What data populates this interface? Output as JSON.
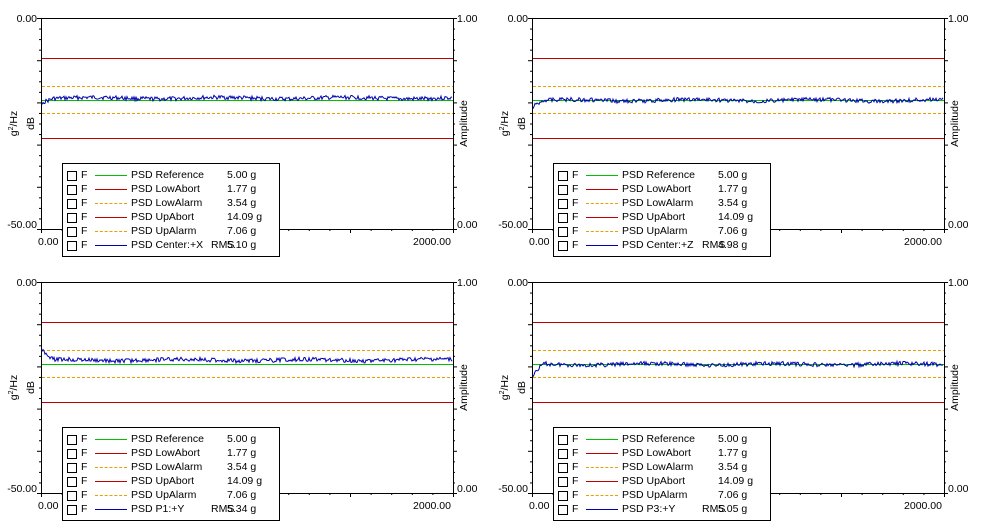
{
  "colors": {
    "reference": "#00c000",
    "abort": "#c00000",
    "alarm": "#e8a000",
    "trace": "#0000b0"
  },
  "chart_data": [
    {
      "type": "line",
      "ylabel": "g2/Hz  dB",
      "ylabel_right": "Amplitude",
      "ylim": [
        -50,
        0
      ],
      "ylim_right": [
        0,
        1
      ],
      "xlim": [
        0,
        2000
      ],
      "y_ticks": [
        "0.00",
        "-50.00"
      ],
      "y_ticks_right": [
        "1.00",
        "0.00"
      ],
      "x_ticks": [
        "0.00",
        "2000.00"
      ],
      "levels": {
        "reference": -19.5,
        "lowabort": -28.5,
        "lowalarm": -22.5,
        "upabort": -9.5,
        "upalarm": -16.0
      },
      "trace": {
        "base": -19.0,
        "start": -20.0
      },
      "legend": [
        {
          "flag": "F",
          "name": "PSD Reference",
          "value": "5.00 g",
          "style": "reference"
        },
        {
          "flag": "F",
          "name": "PSD LowAbort",
          "value": "1.77 g",
          "style": "abort"
        },
        {
          "flag": "F",
          "name": "PSD LowAlarm",
          "value": "3.54 g",
          "style": "alarm"
        },
        {
          "flag": "F",
          "name": "PSD UpAbort",
          "value": "14.09 g",
          "style": "abort"
        },
        {
          "flag": "F",
          "name": "PSD UpAlarm",
          "value": "7.06 g",
          "style": "alarm"
        },
        {
          "flag": "F",
          "name": "PSD Center:+X",
          "rms": "RMS",
          "value": "5.10 g",
          "style": "trace"
        }
      ]
    },
    {
      "type": "line",
      "ylabel": "g2/Hz  dB",
      "ylabel_right": "Amplitude",
      "ylim": [
        -50,
        0
      ],
      "ylim_right": [
        0,
        1
      ],
      "xlim": [
        0,
        2000
      ],
      "y_ticks": [
        "0.00",
        "-50.00"
      ],
      "y_ticks_right": [
        "1.00",
        "0.00"
      ],
      "x_ticks": [
        "0.00",
        "2000.00"
      ],
      "levels": {
        "reference": -19.5,
        "lowabort": -28.5,
        "lowalarm": -22.5,
        "upabort": -9.5,
        "upalarm": -16.0
      },
      "trace": {
        "base": -19.5,
        "start": -21.0
      },
      "legend": [
        {
          "flag": "F",
          "name": "PSD Reference",
          "value": "5.00 g",
          "style": "reference"
        },
        {
          "flag": "F",
          "name": "PSD LowAbort",
          "value": "1.77 g",
          "style": "abort"
        },
        {
          "flag": "F",
          "name": "PSD LowAlarm",
          "value": "3.54 g",
          "style": "alarm"
        },
        {
          "flag": "F",
          "name": "PSD UpAbort",
          "value": "14.09 g",
          "style": "abort"
        },
        {
          "flag": "F",
          "name": "PSD UpAlarm",
          "value": "7.06 g",
          "style": "alarm"
        },
        {
          "flag": "F",
          "name": "PSD Center:+Z",
          "rms": "RMS",
          "value": "4.98 g",
          "style": "trace"
        }
      ]
    },
    {
      "type": "line",
      "ylabel": "g2/Hz  dB",
      "ylabel_right": "Amplitude",
      "ylim": [
        -50,
        0
      ],
      "ylim_right": [
        0,
        1
      ],
      "xlim": [
        0,
        2000
      ],
      "y_ticks": [
        "0.00",
        "-50.00"
      ],
      "y_ticks_right": [
        "1.00",
        "0.00"
      ],
      "x_ticks": [
        "0.00",
        "2000.00"
      ],
      "levels": {
        "reference": -19.5,
        "lowabort": -28.5,
        "lowalarm": -22.5,
        "upabort": -9.5,
        "upalarm": -16.0
      },
      "trace": {
        "base": -18.5,
        "start": -16.0
      },
      "legend": [
        {
          "flag": "F",
          "name": "PSD Reference",
          "value": "5.00 g",
          "style": "reference"
        },
        {
          "flag": "F",
          "name": "PSD LowAbort",
          "value": "1.77 g",
          "style": "abort"
        },
        {
          "flag": "F",
          "name": "PSD LowAlarm",
          "value": "3.54 g",
          "style": "alarm"
        },
        {
          "flag": "F",
          "name": "PSD UpAbort",
          "value": "14.09 g",
          "style": "abort"
        },
        {
          "flag": "F",
          "name": "PSD UpAlarm",
          "value": "7.06 g",
          "style": "alarm"
        },
        {
          "flag": "F",
          "name": "PSD P1:+Y",
          "rms": "RMS",
          "value": "5.34 g",
          "style": "trace"
        }
      ]
    },
    {
      "type": "line",
      "ylabel": "g2/Hz  dB",
      "ylabel_right": "Amplitude",
      "ylim": [
        -50,
        0
      ],
      "ylim_right": [
        0,
        1
      ],
      "xlim": [
        0,
        2000
      ],
      "y_ticks": [
        "0.00",
        "-50.00"
      ],
      "y_ticks_right": [
        "1.00",
        "0.00"
      ],
      "x_ticks": [
        "0.00",
        "2000.00"
      ],
      "levels": {
        "reference": -19.5,
        "lowabort": -28.5,
        "lowalarm": -22.5,
        "upabort": -9.5,
        "upalarm": -16.0
      },
      "trace": {
        "base": -19.5,
        "start": -22.0
      },
      "legend": [
        {
          "flag": "F",
          "name": "PSD Reference",
          "value": "5.00 g",
          "style": "reference"
        },
        {
          "flag": "F",
          "name": "PSD LowAbort",
          "value": "1.77 g",
          "style": "abort"
        },
        {
          "flag": "F",
          "name": "PSD LowAlarm",
          "value": "3.54 g",
          "style": "alarm"
        },
        {
          "flag": "F",
          "name": "PSD UpAbort",
          "value": "14.09 g",
          "style": "abort"
        },
        {
          "flag": "F",
          "name": "PSD UpAlarm",
          "value": "7.06 g",
          "style": "alarm"
        },
        {
          "flag": "F",
          "name": "PSD P3:+Y",
          "rms": "RMS",
          "value": "5.05 g",
          "style": "trace"
        }
      ]
    }
  ]
}
